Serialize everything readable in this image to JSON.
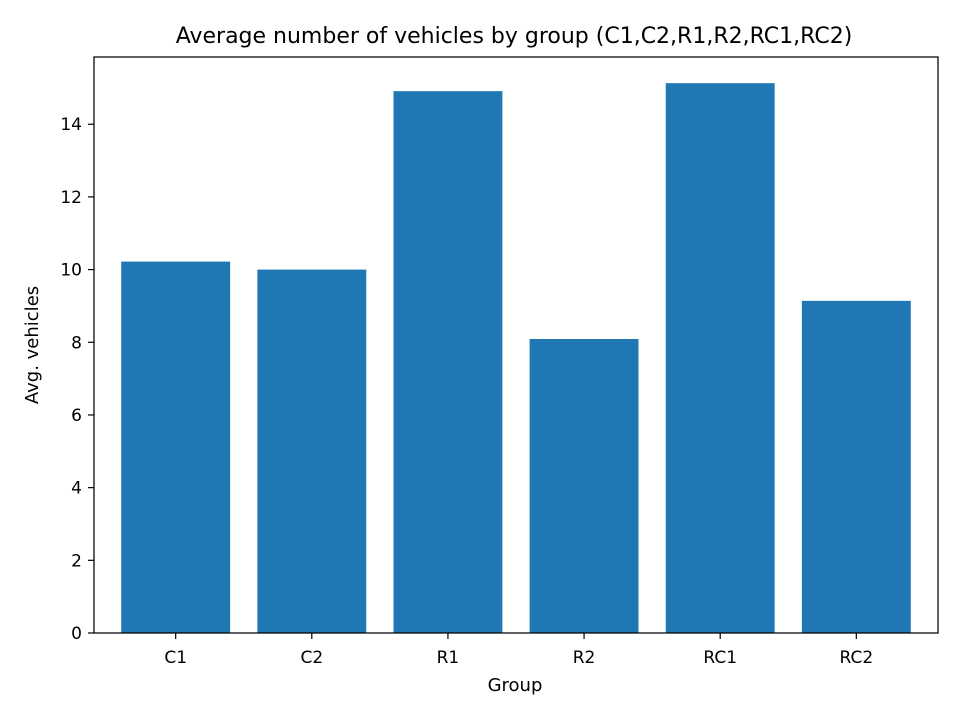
{
  "chart_data": {
    "type": "bar",
    "title": "Average number of vehicles by group (C1,C2,R1,R2,RC1,RC2)",
    "xlabel": "Group",
    "ylabel": "Avg. vehicles",
    "categories": [
      "C1",
      "C2",
      "R1",
      "R2",
      "RC1",
      "RC2"
    ],
    "values": [
      10.22,
      10.0,
      14.91,
      8.09,
      15.13,
      9.14
    ],
    "ylim": [
      0,
      15.85
    ],
    "yticks": [
      0,
      2,
      4,
      6,
      8,
      10,
      12,
      14
    ],
    "grid": false,
    "bar_color": "#1f77b4"
  }
}
